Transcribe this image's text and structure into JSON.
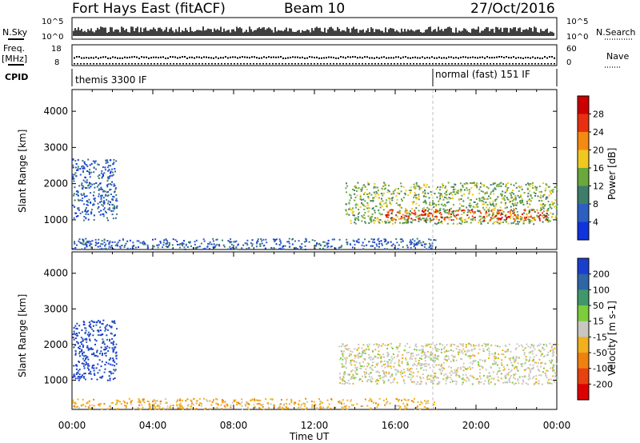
{
  "header": {
    "station": "Fort Hays East (fitACF)",
    "beam": "Beam 10",
    "date": "27/Oct/2016"
  },
  "summary_panels": {
    "nsky_label": "N.Sky",
    "nsky_ticks": [
      "10^5",
      "10^0"
    ],
    "nsearch_label": "N.Search",
    "nsearch_ticks": [
      "10^5",
      "10^0"
    ],
    "freq_label_1": "Freq.",
    "freq_label_2": "[MHz]",
    "freq_ticks": [
      "18",
      "8"
    ],
    "nave_label": "Nave",
    "nave_ticks": [
      "60",
      "0"
    ],
    "cpid_label": "CPID",
    "cpid_segments": [
      "themis 3300 IF",
      "normal (fast) 151 IF"
    ]
  },
  "time_axis": {
    "title": "Time UT",
    "ticks": [
      "00:00",
      "04:00",
      "08:00",
      "12:00",
      "16:00",
      "20:00",
      "00:00"
    ]
  },
  "chart_data": [
    {
      "type": "heatmap",
      "title": "Power",
      "ylabel": "Slant Range [km]",
      "xlabel": "Time UT",
      "x_range_hours": [
        0,
        24
      ],
      "ylim": [
        180,
        4600
      ],
      "y_ticks": [
        1000,
        2000,
        3000,
        4000
      ],
      "colorbar": {
        "label": "Power [dB]",
        "ticks": [
          "4",
          "8",
          "12",
          "16",
          "20",
          "24",
          "28"
        ],
        "colors": [
          "#1133dd",
          "#2d5fc0",
          "#3e7d6a",
          "#6aa83c",
          "#f0c820",
          "#f58a12",
          "#e83010",
          "#cc0000"
        ]
      },
      "echo_regions": [
        {
          "name": "early high-range patches",
          "t_start": 0.0,
          "t_end": 2.2,
          "r_min": 1000,
          "r_max": 2700,
          "value": 8
        },
        {
          "name": "evening band",
          "t_start": 13.5,
          "t_end": 24.0,
          "r_min": 900,
          "r_max": 2050,
          "value": 16
        },
        {
          "name": "evening band core",
          "t_start": 15.5,
          "t_end": 23.5,
          "r_min": 1000,
          "r_max": 1300,
          "value": 28
        },
        {
          "name": "near-range clutter",
          "t_start": 0.0,
          "t_end": 18.0,
          "r_min": 200,
          "r_max": 500,
          "value": 6
        }
      ]
    },
    {
      "type": "heatmap",
      "title": "Velocity",
      "ylabel": "Slant Range [km]",
      "xlabel": "Time UT",
      "x_range_hours": [
        0,
        24
      ],
      "ylim": [
        180,
        4600
      ],
      "y_ticks": [
        1000,
        2000,
        3000,
        4000
      ],
      "colorbar": {
        "label": "Velocity [m s-1]",
        "ticks": [
          "200",
          "100",
          "50",
          "15",
          "-15",
          "-50",
          "-100",
          "-200"
        ],
        "colors": [
          "#1a3fcf",
          "#2e66a6",
          "#40986a",
          "#7ccc3c",
          "#c8c8c0",
          "#f0b020",
          "#f08010",
          "#e84010",
          "#dd0000"
        ]
      },
      "echo_regions": [
        {
          "name": "early high-range patches",
          "t_start": 0.0,
          "t_end": 2.2,
          "r_min": 1000,
          "r_max": 2700,
          "value": 150
        },
        {
          "name": "evening band",
          "t_start": 13.2,
          "t_end": 24.0,
          "r_min": 900,
          "r_max": 2050,
          "value": 0
        },
        {
          "name": "near-range clutter",
          "t_start": 0.0,
          "t_end": 18.0,
          "r_min": 200,
          "r_max": 500,
          "value": -40
        }
      ]
    }
  ]
}
